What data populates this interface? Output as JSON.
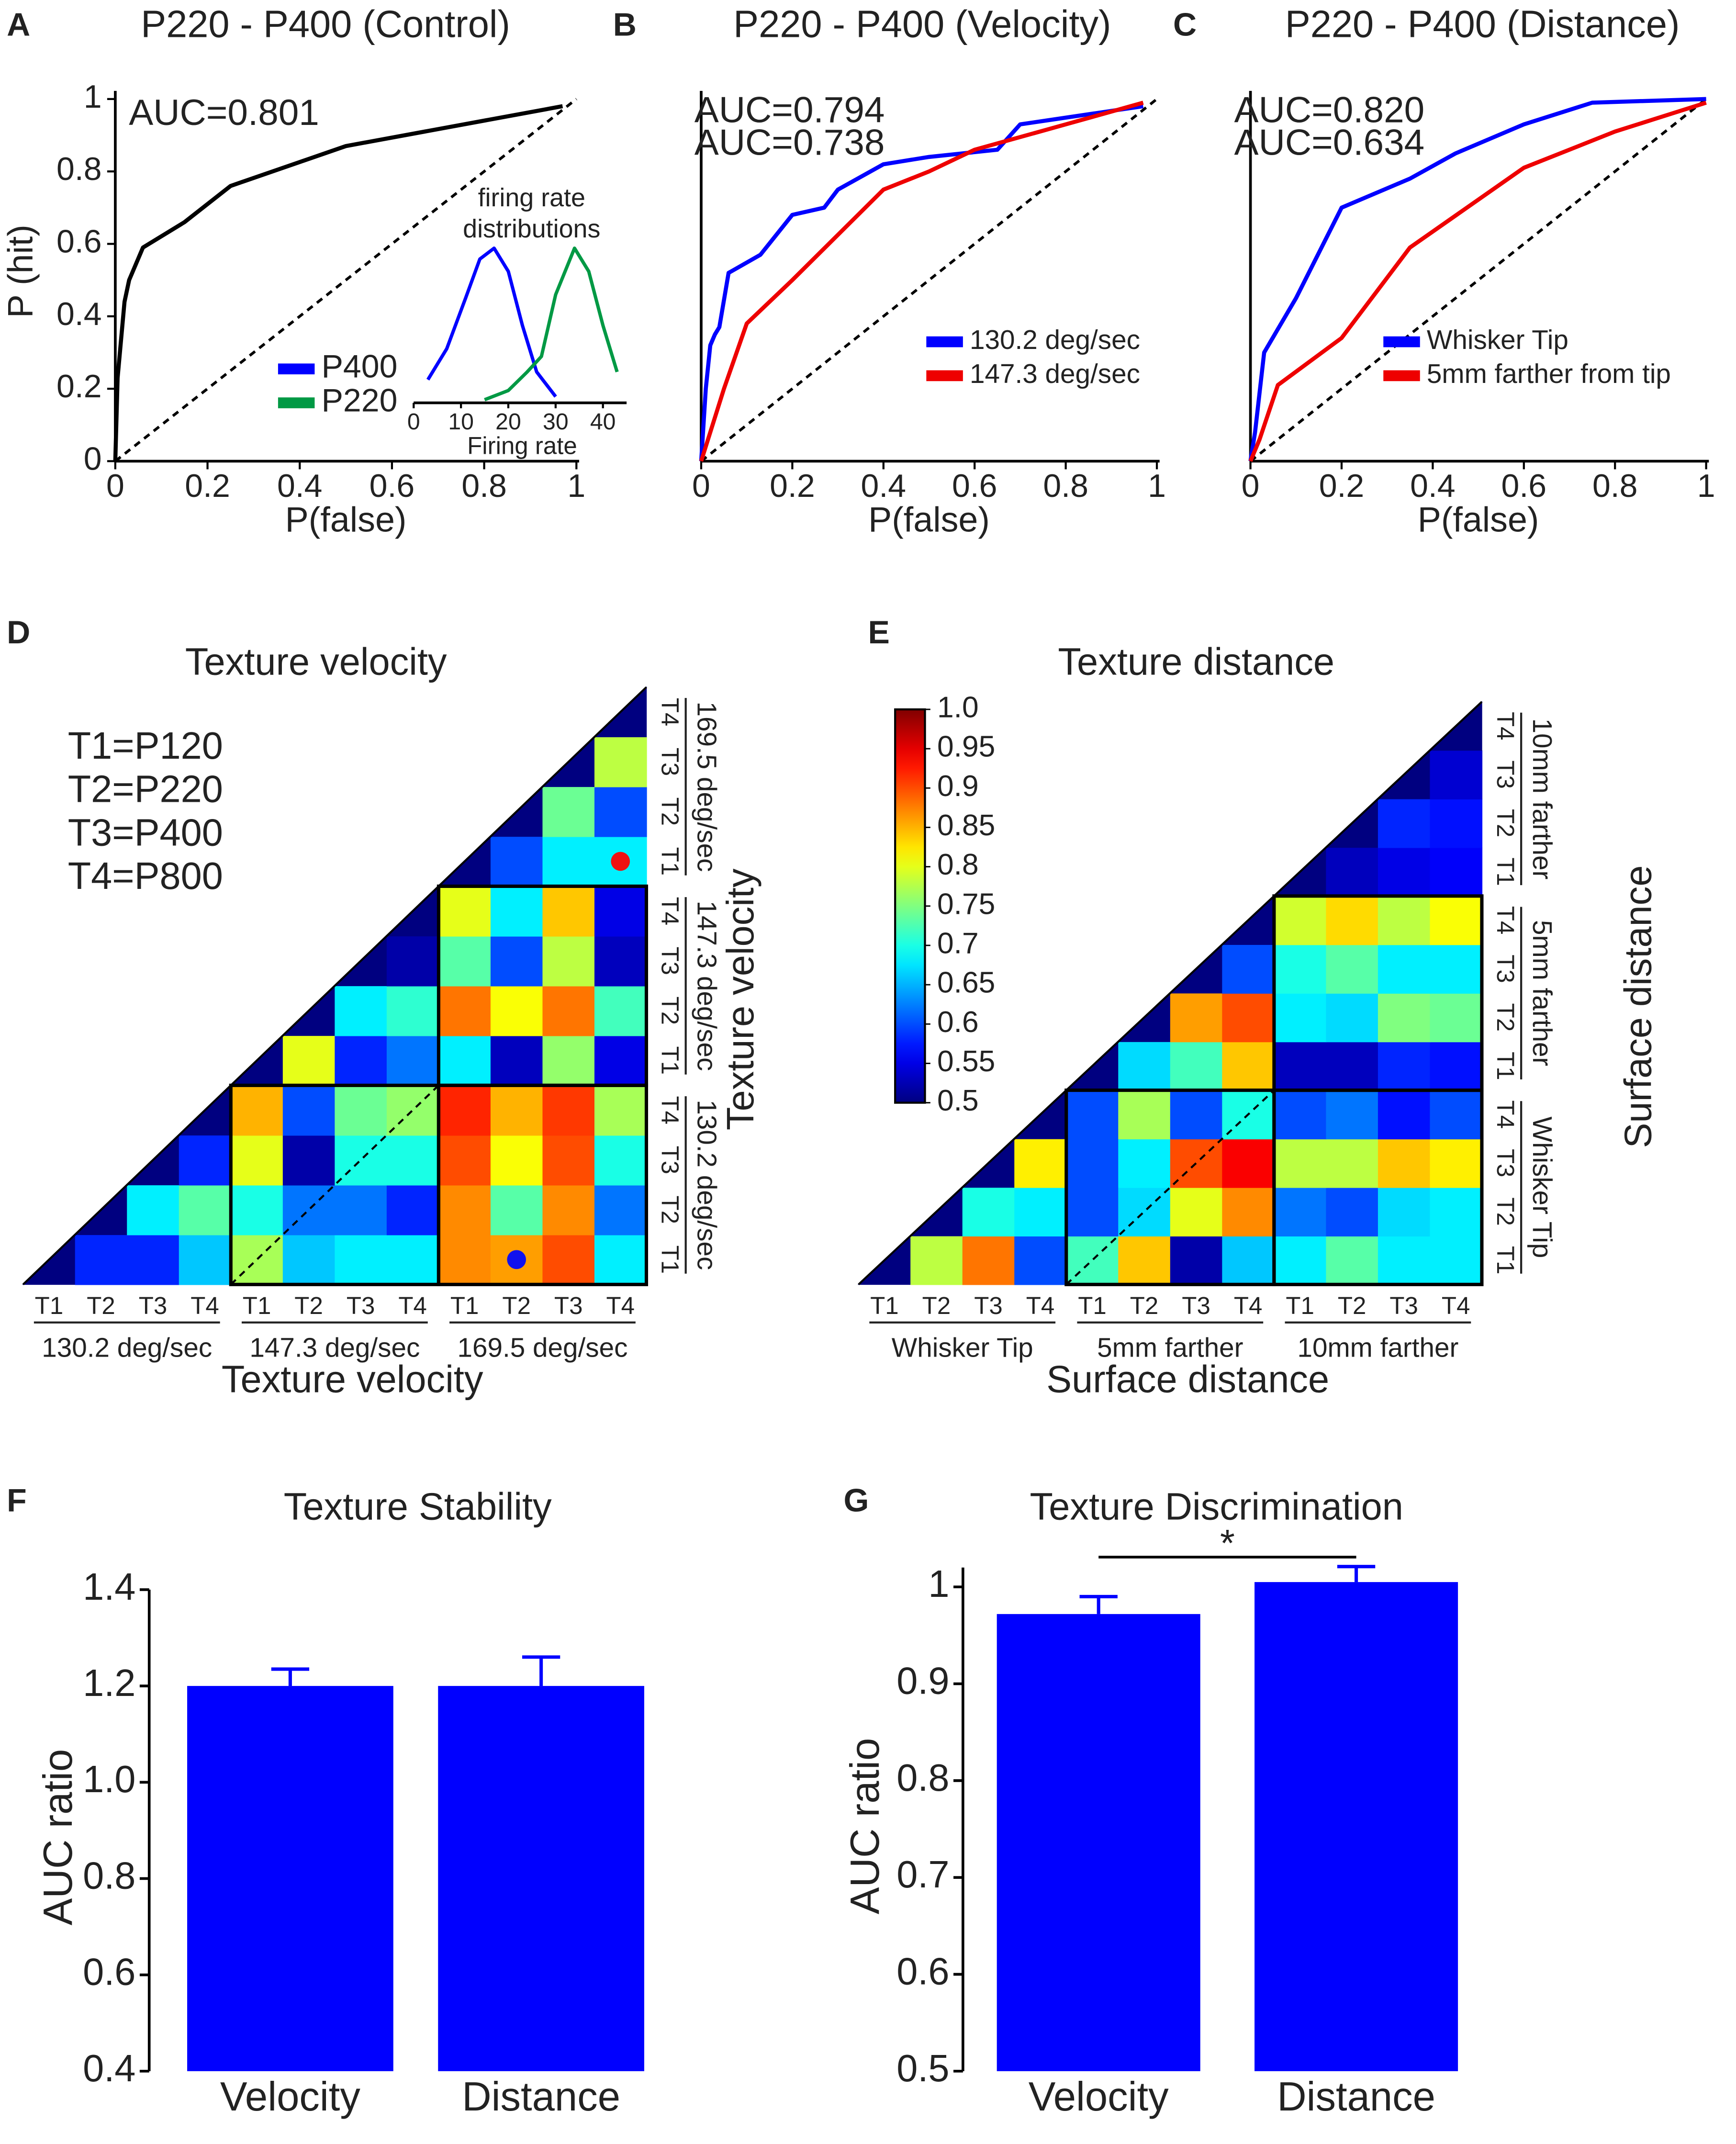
{
  "chart_data": [
    {
      "type": "line",
      "panel": "A",
      "title": "P220 - P400 (Control)",
      "xlabel": "P(false)",
      "ylabel": "P (hit)",
      "xlim": [
        0,
        1
      ],
      "ylim": [
        0,
        1
      ],
      "xticks": [
        0,
        0.2,
        0.4,
        0.6,
        0.8,
        1
      ],
      "yticks": [
        0,
        0.2,
        0.4,
        0.6,
        0.8,
        1
      ],
      "annotations": [
        {
          "text": "AUC=0.801",
          "color": "#222222"
        }
      ],
      "series": [
        {
          "color": "#000000",
          "x": [
            0,
            0.005,
            0.02,
            0.03,
            0.06,
            0.15,
            0.25,
            0.5,
            0.97
          ],
          "values": [
            0,
            0.23,
            0.44,
            0.5,
            0.59,
            0.66,
            0.76,
            0.87,
            0.98
          ]
        }
      ],
      "inset": {
        "type": "line",
        "title": [
          "firing rate",
          "distributions"
        ],
        "xlabel": "Firing rate",
        "xlim": [
          0,
          45
        ],
        "ylim": [
          0,
          1
        ],
        "xticks": [
          0,
          10,
          20,
          30,
          40
        ],
        "legend": "lower left",
        "series": [
          {
            "name": "P400",
            "color": "#0000ff",
            "x": [
              3,
              7,
              11,
              14,
              17,
              20,
              23,
              26,
              30
            ],
            "values": [
              0.15,
              0.35,
              0.68,
              0.93,
              1.0,
              0.85,
              0.5,
              0.2,
              0.04
            ]
          },
          {
            "name": "P220",
            "color": "#009944",
            "x": [
              15,
              20,
              24,
              27,
              30,
              34,
              37,
              40,
              43
            ],
            "values": [
              0.02,
              0.08,
              0.2,
              0.3,
              0.7,
              1.0,
              0.85,
              0.5,
              0.2
            ]
          }
        ]
      }
    },
    {
      "type": "line",
      "panel": "B",
      "title": "P220 - P400 (Velocity)",
      "xlabel": "P(false)",
      "xlim": [
        0,
        1
      ],
      "ylim": [
        0,
        1
      ],
      "xticks": [
        0,
        0.2,
        0.4,
        0.6,
        0.8,
        1
      ],
      "legend": "lower right",
      "annotations": [
        {
          "text": "AUC=0.794",
          "color": "#0000ff"
        },
        {
          "text": "AUC=0.738",
          "color": "#ee0000"
        }
      ],
      "series": [
        {
          "name": "130.2 deg/sec",
          "color": "#0000ff",
          "x": [
            0,
            0.01,
            0.02,
            0.03,
            0.04,
            0.06,
            0.13,
            0.2,
            0.27,
            0.3,
            0.4,
            0.5,
            0.65,
            0.7,
            0.97
          ],
          "values": [
            0,
            0.2,
            0.32,
            0.35,
            0.37,
            0.52,
            0.57,
            0.68,
            0.7,
            0.75,
            0.82,
            0.84,
            0.86,
            0.93,
            0.98
          ]
        },
        {
          "name": "147.3 deg/sec",
          "color": "#ee0000",
          "x": [
            0,
            0.05,
            0.1,
            0.2,
            0.4,
            0.5,
            0.6,
            0.8,
            0.97
          ],
          "values": [
            0,
            0.2,
            0.38,
            0.5,
            0.75,
            0.8,
            0.86,
            0.93,
            0.99
          ]
        }
      ]
    },
    {
      "type": "line",
      "panel": "C",
      "title": "P220 - P400 (Distance)",
      "xlabel": "P(false)",
      "xlim": [
        0,
        1
      ],
      "ylim": [
        0,
        1
      ],
      "xticks": [
        0,
        0.2,
        0.4,
        0.6,
        0.8,
        1
      ],
      "legend": "lower right",
      "annotations": [
        {
          "text": "AUC=0.820",
          "color": "#0000ff"
        },
        {
          "text": "AUC=0.634",
          "color": "#ee0000"
        }
      ],
      "series": [
        {
          "name": "Whisker Tip",
          "color": "#0000ff",
          "x": [
            0,
            0.01,
            0.03,
            0.1,
            0.2,
            0.35,
            0.45,
            0.6,
            0.75,
            1
          ],
          "values": [
            0,
            0.08,
            0.3,
            0.45,
            0.7,
            0.78,
            0.85,
            0.93,
            0.99,
            1
          ]
        },
        {
          "name": "5mm farther from tip",
          "color": "#ee0000",
          "x": [
            0,
            0.02,
            0.06,
            0.2,
            0.35,
            0.6,
            0.8,
            1
          ],
          "values": [
            0,
            0.06,
            0.21,
            0.34,
            0.59,
            0.81,
            0.91,
            0.99
          ]
        }
      ]
    },
    {
      "type": "heatmap",
      "panel": "D",
      "title": "Texture velocity",
      "xlabel": "Texture velocity",
      "ylabel": "Texture velocity",
      "categories": [
        "T1",
        "T2",
        "T3",
        "T4"
      ],
      "groups": [
        "130.2 deg/sec",
        "147.3 deg/sec",
        "169.5 deg/sec"
      ],
      "annotations": [
        "T1=P120",
        "T2=P220",
        "T3=P400",
        "T4=P800"
      ],
      "colormap": "jet",
      "clim": [
        0.5,
        1
      ],
      "values": [
        [
          0.5,
          0.58,
          0.58,
          0.66,
          0.77,
          0.66,
          0.68,
          0.68,
          0.87,
          0.86,
          0.9,
          0.68
        ],
        [
          null,
          0.5,
          0.68,
          0.73,
          0.7,
          0.62,
          0.62,
          0.58,
          0.87,
          0.73,
          0.87,
          0.62
        ],
        [
          null,
          null,
          0.5,
          0.58,
          0.8,
          0.52,
          0.7,
          0.7,
          0.9,
          0.81,
          0.9,
          0.7
        ],
        [
          null,
          null,
          null,
          0.5,
          0.85,
          0.6,
          0.74,
          0.76,
          0.92,
          0.85,
          0.91,
          0.77
        ],
        [
          null,
          null,
          null,
          null,
          0.5,
          0.8,
          0.58,
          0.62,
          0.68,
          0.53,
          0.76,
          0.55
        ],
        [
          null,
          null,
          null,
          null,
          null,
          0.5,
          0.68,
          0.71,
          0.88,
          0.81,
          0.88,
          0.72
        ],
        [
          null,
          null,
          null,
          null,
          null,
          null,
          0.5,
          0.52,
          0.73,
          0.6,
          0.78,
          0.53
        ],
        [
          null,
          null,
          null,
          null,
          null,
          null,
          null,
          0.5,
          0.8,
          0.68,
          0.84,
          0.55
        ],
        [
          null,
          null,
          null,
          null,
          null,
          null,
          null,
          null,
          0.5,
          0.6,
          0.68,
          0.68
        ],
        [
          null,
          null,
          null,
          null,
          null,
          null,
          null,
          null,
          null,
          0.5,
          0.74,
          0.6
        ],
        [
          null,
          null,
          null,
          null,
          null,
          null,
          null,
          null,
          null,
          null,
          0.5,
          0.78
        ],
        [
          null,
          null,
          null,
          null,
          null,
          null,
          null,
          null,
          null,
          null,
          null,
          0.5
        ]
      ]
    },
    {
      "type": "heatmap",
      "panel": "E",
      "title": "Texture distance",
      "xlabel": "Surface distance",
      "ylabel": "Surface distance",
      "categories": [
        "T1",
        "T2",
        "T3",
        "T4"
      ],
      "groups": [
        "Whisker Tip",
        "5mm farther",
        "10mm farther"
      ],
      "colormap": "jet",
      "clim": [
        0.5,
        1
      ],
      "colorbar": {
        "ticks": [
          0.5,
          0.55,
          0.6,
          0.65,
          0.7,
          0.75,
          0.8,
          0.85,
          0.9,
          0.95,
          {
            "value": 1,
            "label": "1.0"
          }
        ]
      },
      "values": [
        [
          0.5,
          0.78,
          0.88,
          0.6,
          0.72,
          0.84,
          0.52,
          0.66,
          0.68,
          0.73,
          0.68,
          0.68
        ],
        [
          null,
          0.5,
          0.7,
          0.68,
          0.6,
          0.67,
          0.8,
          0.87,
          0.62,
          0.6,
          0.67,
          0.68
        ],
        [
          null,
          null,
          0.5,
          0.82,
          0.6,
          0.68,
          0.9,
          0.94,
          0.78,
          0.78,
          0.84,
          0.82
        ],
        [
          null,
          null,
          null,
          0.5,
          0.6,
          0.77,
          0.6,
          0.7,
          0.6,
          0.62,
          0.57,
          0.6
        ],
        [
          null,
          null,
          null,
          null,
          0.5,
          0.67,
          0.72,
          0.84,
          0.53,
          0.53,
          0.58,
          0.57
        ],
        [
          null,
          null,
          null,
          null,
          null,
          0.5,
          0.86,
          0.9,
          0.68,
          0.67,
          0.75,
          0.74
        ],
        [
          null,
          null,
          null,
          null,
          null,
          null,
          0.5,
          0.6,
          0.7,
          0.73,
          0.68,
          0.68
        ],
        [
          null,
          null,
          null,
          null,
          null,
          null,
          null,
          0.5,
          0.79,
          0.83,
          0.78,
          0.81
        ],
        [
          null,
          null,
          null,
          null,
          null,
          null,
          null,
          null,
          0.5,
          0.53,
          0.55,
          0.56
        ],
        [
          null,
          null,
          null,
          null,
          null,
          null,
          null,
          null,
          null,
          0.5,
          0.58,
          0.57
        ],
        [
          null,
          null,
          null,
          null,
          null,
          null,
          null,
          null,
          null,
          null,
          0.5,
          0.54
        ],
        [
          null,
          null,
          null,
          null,
          null,
          null,
          null,
          null,
          null,
          null,
          null,
          0.5
        ]
      ]
    },
    {
      "type": "bar",
      "panel": "F",
      "title": "Texture Stability",
      "ylabel": "AUC ratio",
      "categories": [
        "Velocity",
        "Distance"
      ],
      "values": [
        1.2,
        1.2
      ],
      "errors": [
        0.035,
        0.06
      ],
      "color": "#0000ff",
      "ylim": [
        0.4,
        1.4
      ],
      "yticks": [
        0.4,
        0.6,
        0.8,
        {
          "value": 1,
          "label": "1.0"
        },
        1.2,
        1.4
      ]
    },
    {
      "type": "bar",
      "panel": "G",
      "title": "Texture Discrimination",
      "ylabel": "AUC ratio",
      "categories": [
        "Velocity",
        "Distance"
      ],
      "values": [
        0.972,
        1.005
      ],
      "errors": [
        0.018,
        0.016
      ],
      "color": "#0000ff",
      "ylim": [
        0.5,
        1.02
      ],
      "yticks": [
        0.5,
        0.6,
        0.7,
        0.8,
        0.9,
        1
      ],
      "annotations": [
        {
          "text": "*"
        }
      ]
    }
  ]
}
